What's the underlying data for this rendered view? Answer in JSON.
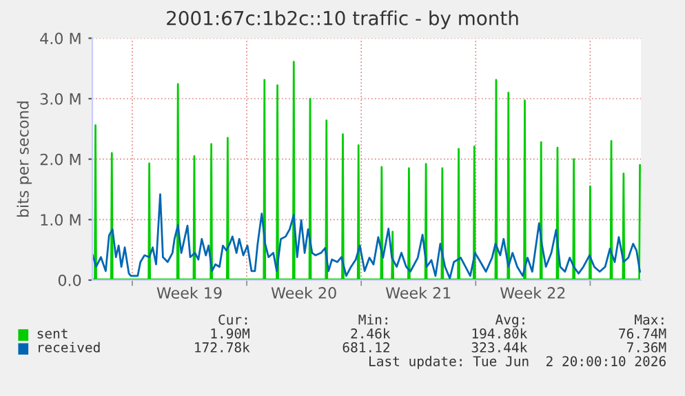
{
  "chart_data": {
    "type": "line",
    "title": "2001:67c:1b2c::10 traffic - by month",
    "ylabel": "bits per second",
    "xlim": [
      "2026-05-01T13:24",
      "2026-06-04T02:24"
    ],
    "ylim": [
      0,
      4.0
    ],
    "xticks": [
      {
        "value": "2026-05-04T00:00",
        "label": null
      },
      {
        "value": "2026-05-07T12:00",
        "label": "Week 19"
      },
      {
        "value": "2026-05-11T00:00",
        "label": null
      },
      {
        "value": "2026-05-14T12:00",
        "label": "Week 20"
      },
      {
        "value": "2026-05-18T00:00",
        "label": null
      },
      {
        "value": "2026-05-21T12:00",
        "label": "Week 21"
      },
      {
        "value": "2026-05-25T00:00",
        "label": null
      },
      {
        "value": "2026-05-28T12:00",
        "label": "Week 22"
      },
      {
        "value": "2026-06-01T00:00",
        "label": null
      }
    ],
    "yticks": [
      {
        "value": 0,
        "label": "0.0"
      },
      {
        "value": 1,
        "label": "1.0 M"
      },
      {
        "value": 2,
        "label": "2.0 M"
      },
      {
        "value": 3,
        "label": "3.0 M"
      },
      {
        "value": 4,
        "label": "4.0 M"
      }
    ],
    "grid": true,
    "legend": "bottom",
    "series": [
      {
        "name": "sent",
        "color": "#00cc00",
        "x": [
          "2026-05-01T14:00",
          "2026-05-01T17:00",
          "2026-05-01T18:00",
          "2026-05-01T19:00",
          "2026-05-02T17:00",
          "2026-05-02T18:00",
          "2026-05-02T19:00",
          "2026-05-05T00:00",
          "2026-05-05T01:00",
          "2026-05-05T02:00",
          "2026-05-06T18:00",
          "2026-05-06T19:00",
          "2026-05-06T20:00",
          "2026-05-07T18:00",
          "2026-05-07T19:00",
          "2026-05-07T20:00",
          "2026-05-08T19:00",
          "2026-05-08T20:00",
          "2026-05-08T21:00",
          "2026-05-09T19:00",
          "2026-05-09T20:00",
          "2026-05-09T21:00",
          "2026-05-12T01:00",
          "2026-05-12T02:00",
          "2026-05-12T03:00",
          "2026-05-12T20:00",
          "2026-05-12T21:00",
          "2026-05-12T22:00",
          "2026-05-13T20:00",
          "2026-05-13T21:00",
          "2026-05-13T22:00",
          "2026-05-14T20:00",
          "2026-05-14T21:00",
          "2026-05-14T22:00",
          "2026-05-15T20:00",
          "2026-05-15T21:00",
          "2026-05-15T22:00",
          "2026-05-16T20:00",
          "2026-05-16T21:00",
          "2026-05-16T22:00",
          "2026-05-17T19:00",
          "2026-05-17T20:00",
          "2026-05-17T21:00",
          "2026-05-19T05:00",
          "2026-05-19T06:00",
          "2026-05-19T07:00",
          "2026-05-19T21:00",
          "2026-05-19T22:00",
          "2026-05-19T23:00",
          "2026-05-20T21:00",
          "2026-05-20T22:00",
          "2026-05-20T23:00",
          "2026-05-21T22:00",
          "2026-05-21T23:00",
          "2026-05-22T00:00",
          "2026-05-22T22:00",
          "2026-05-22T23:00",
          "2026-05-23T00:00",
          "2026-05-23T22:00",
          "2026-05-23T23:00",
          "2026-05-24T00:00",
          "2026-05-24T21:00",
          "2026-05-24T22:00",
          "2026-05-24T23:00",
          "2026-05-26T05:00",
          "2026-05-26T06:00",
          "2026-05-26T07:00",
          "2026-05-26T23:00",
          "2026-05-27T00:00",
          "2026-05-27T01:00",
          "2026-05-27T23:00",
          "2026-05-28T00:00",
          "2026-05-28T01:00",
          "2026-05-28T23:00",
          "2026-05-29T00:00",
          "2026-05-29T01:00",
          "2026-05-29T23:00",
          "2026-05-30T00:00",
          "2026-05-30T01:00",
          "2026-05-30T23:00",
          "2026-05-31T00:00",
          "2026-05-31T01:00",
          "2026-05-31T23:00",
          "2026-06-01T00:00",
          "2026-06-01T01:00",
          "2026-06-02T06:00",
          "2026-06-02T07:00",
          "2026-06-02T08:00",
          "2026-06-03T00:00",
          "2026-06-03T01:00",
          "2026-06-03T02:00",
          "2026-06-04T00:00",
          "2026-06-04T01:00"
        ],
        "values": [
          0.01,
          0.01,
          2.56,
          0.01,
          0.01,
          2.1,
          0.01,
          0.01,
          1.93,
          0.01,
          0.01,
          3.24,
          0.01,
          0.01,
          2.05,
          0.01,
          0.01,
          2.25,
          0.01,
          0.01,
          2.35,
          0.01,
          0.01,
          3.31,
          0.01,
          0.01,
          3.22,
          0.01,
          0.01,
          3.61,
          0.01,
          0.01,
          3.0,
          0.01,
          0.01,
          2.64,
          0.01,
          0.01,
          2.41,
          0.01,
          0.01,
          2.23,
          0.01,
          0.01,
          1.87,
          0.01,
          0.01,
          0.8,
          0.01,
          0.01,
          1.85,
          0.01,
          0.01,
          1.92,
          0.01,
          0.01,
          1.85,
          0.01,
          0.01,
          2.17,
          0.01,
          0.01,
          2.21,
          0.01,
          0.01,
          3.31,
          0.01,
          0.01,
          3.1,
          0.01,
          0.01,
          2.97,
          0.01,
          0.01,
          2.28,
          0.01,
          0.01,
          2.19,
          0.01,
          0.01,
          2.0,
          0.01,
          0.01,
          1.55,
          0.01,
          0.01,
          2.3,
          0.01,
          0.01,
          1.76,
          0.01,
          0.01,
          1.9
        ]
      },
      {
        "name": "received",
        "color": "#0066b3",
        "x": [
          "2026-05-01T14:00",
          "2026-05-01T19:00",
          "2026-05-02T02:00",
          "2026-05-02T09:00",
          "2026-05-02T14:00",
          "2026-05-02T19:00",
          "2026-05-03T00:00",
          "2026-05-03T04:00",
          "2026-05-03T08:00",
          "2026-05-03T13:00",
          "2026-05-03T19:00",
          "2026-05-03T22:00",
          "2026-05-04T08:00",
          "2026-05-04T12:00",
          "2026-05-04T18:00",
          "2026-05-05T01:00",
          "2026-05-05T06:00",
          "2026-05-05T11:00",
          "2026-05-05T17:00",
          "2026-05-05T21:00",
          "2026-05-06T04:00",
          "2026-05-06T11:00",
          "2026-05-06T14:00",
          "2026-05-06T19:00",
          "2026-05-07T00:00",
          "2026-05-07T09:00",
          "2026-05-07T13:00",
          "2026-05-07T20:00",
          "2026-05-08T01:00",
          "2026-05-08T06:00",
          "2026-05-08T12:00",
          "2026-05-08T16:00",
          "2026-05-08T21:00",
          "2026-05-09T02:00",
          "2026-05-09T08:00",
          "2026-05-09T13:00",
          "2026-05-09T18:00",
          "2026-05-09T23:00",
          "2026-05-10T03:00",
          "2026-05-10T09:00",
          "2026-05-10T13:00",
          "2026-05-10T19:00",
          "2026-05-11T01:00",
          "2026-05-11T07:00",
          "2026-05-11T12:00",
          "2026-05-11T16:00",
          "2026-05-11T22:00",
          "2026-05-12T03:00",
          "2026-05-12T08:00",
          "2026-05-12T15:00",
          "2026-05-12T20:00",
          "2026-05-13T02:00",
          "2026-05-13T09:00",
          "2026-05-13T15:00",
          "2026-05-13T21:00",
          "2026-05-14T02:00",
          "2026-05-14T08:00",
          "2026-05-14T13:00",
          "2026-05-14T18:00",
          "2026-05-15T00:00",
          "2026-05-15T05:00",
          "2026-05-15T13:00",
          "2026-05-15T19:00",
          "2026-05-16T00:00",
          "2026-05-16T05:00",
          "2026-05-16T13:00",
          "2026-05-16T19:00",
          "2026-05-17T02:00",
          "2026-05-17T09:00",
          "2026-05-17T16:00",
          "2026-05-17T22:00",
          "2026-05-18T05:00",
          "2026-05-18T12:00",
          "2026-05-18T18:00",
          "2026-05-19T01:00",
          "2026-05-19T08:00",
          "2026-05-19T16:00",
          "2026-05-19T21:00",
          "2026-05-20T04:00",
          "2026-05-20T11:00",
          "2026-05-20T18:00",
          "2026-05-21T00:00",
          "2026-05-21T11:00",
          "2026-05-21T18:00",
          "2026-05-22T00:00",
          "2026-05-22T07:00",
          "2026-05-22T13:00",
          "2026-05-22T20:00",
          "2026-05-23T03:00",
          "2026-05-23T10:00",
          "2026-05-23T16:00",
          "2026-05-24T02:00",
          "2026-05-24T09:00",
          "2026-05-24T16:00",
          "2026-05-24T23:00",
          "2026-05-25T07:00",
          "2026-05-25T15:00",
          "2026-05-26T00:00",
          "2026-05-26T05:00",
          "2026-05-26T12:00",
          "2026-05-26T17:00",
          "2026-05-27T00:00",
          "2026-05-27T06:00",
          "2026-05-27T13:00",
          "2026-05-27T21:00",
          "2026-05-28T04:00",
          "2026-05-28T11:00",
          "2026-05-28T21:00",
          "2026-05-29T01:00",
          "2026-05-29T07:00",
          "2026-05-29T15:00",
          "2026-05-29T22:00",
          "2026-05-30T04:00",
          "2026-05-30T11:00",
          "2026-05-30T18:00",
          "2026-05-31T00:00",
          "2026-05-31T07:00",
          "2026-05-31T14:00",
          "2026-05-31T23:00",
          "2026-06-01T06:00",
          "2026-06-01T14:00",
          "2026-06-01T22:00",
          "2026-06-02T05:00",
          "2026-06-02T12:00",
          "2026-06-02T18:00",
          "2026-06-03T01:00",
          "2026-06-03T08:00",
          "2026-06-03T15:00",
          "2026-06-03T20:00",
          "2026-06-04T01:00"
        ],
        "values": [
          0.41,
          0.22,
          0.38,
          0.15,
          0.74,
          0.84,
          0.38,
          0.57,
          0.22,
          0.54,
          0.11,
          0.07,
          0.07,
          0.3,
          0.41,
          0.38,
          0.54,
          0.26,
          1.42,
          0.38,
          0.3,
          0.45,
          0.68,
          0.91,
          0.45,
          0.9,
          0.38,
          0.45,
          0.34,
          0.68,
          0.41,
          0.57,
          0.15,
          0.26,
          0.22,
          0.57,
          0.49,
          0.6,
          0.72,
          0.45,
          0.68,
          0.41,
          0.57,
          0.15,
          0.15,
          0.6,
          1.1,
          0.6,
          0.38,
          0.45,
          0.15,
          0.68,
          0.72,
          0.84,
          1.08,
          0.38,
          0.99,
          0.45,
          0.84,
          0.45,
          0.41,
          0.45,
          0.53,
          0.15,
          0.34,
          0.3,
          0.38,
          0.07,
          0.22,
          0.34,
          0.57,
          0.15,
          0.37,
          0.26,
          0.71,
          0.37,
          0.85,
          0.37,
          0.22,
          0.45,
          0.22,
          0.14,
          0.37,
          0.75,
          0.22,
          0.33,
          0.07,
          0.6,
          0.22,
          0.03,
          0.3,
          0.37,
          0.22,
          0.07,
          0.45,
          0.3,
          0.14,
          0.37,
          0.6,
          0.41,
          0.68,
          0.22,
          0.45,
          0.22,
          0.07,
          0.37,
          0.14,
          0.94,
          0.6,
          0.22,
          0.45,
          0.83,
          0.22,
          0.14,
          0.37,
          0.22,
          0.11,
          0.22,
          0.41,
          0.22,
          0.14,
          0.22,
          0.52,
          0.3,
          0.71,
          0.3,
          0.37,
          0.6,
          0.49,
          0.14
        ]
      }
    ],
    "annotations": [
      "Cur:",
      "Min:",
      "Avg:",
      "Max:",
      "1.90M",
      "2.46k",
      "194.80k",
      "76.74M",
      "172.78k",
      "681.12",
      "323.44k",
      "7.36M",
      "Last update: Tue Jun  2 20:00:10 2026"
    ]
  }
}
